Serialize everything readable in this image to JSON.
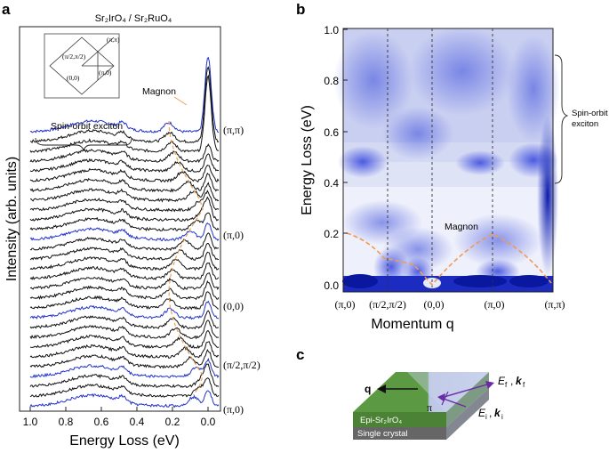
{
  "panel_labels": {
    "a": "a",
    "b": "b",
    "c": "c"
  },
  "panel_a": {
    "title": "Sr₂IrO₄ / Sr₂RuO₄",
    "ylabel": "Intensity (arb. units)",
    "xlabel": "Energy Loss (eV)",
    "xticks": [
      "1.0",
      "0.8",
      "0.6",
      "0.4",
      "0.2",
      "0.0"
    ],
    "annotation_magnon": "Magnon",
    "annotation_soe": "Spin-orbit exciton",
    "q_labels": [
      "(π,π)",
      "(π,0)",
      "(0,0)",
      "(π/2,π/2)",
      "(π,0)"
    ],
    "inset_labels": [
      "(π,π)",
      "(π/2,π/2)",
      "(π,0)",
      "(0,0)"
    ]
  },
  "panel_b": {
    "ylabel": "Energy Loss (eV)",
    "xlabel": "Momentum q",
    "yticks": [
      "0.0",
      "0.2",
      "0.4",
      "0.6",
      "0.8",
      "1.0"
    ],
    "xticks": [
      "(π,0)",
      "(π/2,π/2)",
      "(0,0)",
      "(π,0)",
      "(π,π)"
    ],
    "annotation_magnon": "Magnon",
    "annotation_soe": "Spin-orbit exciton"
  },
  "panel_c": {
    "q_label": "q",
    "ef_label": "E",
    "ef_sub": "f",
    "kf_label": "k",
    "kf_sub": "f",
    "ei_label": "E",
    "ei_sub": "i",
    "ki_label": "k",
    "ki_sub": "i",
    "pi_label": "π",
    "film_label": "Epi-Sr₂IrO₄",
    "substrate_label": "Single crystal"
  },
  "colors": {
    "blue": "#2233cc",
    "orange": "#f0a050",
    "film": "#4f8a3a",
    "substrate": "#6a6a6a"
  },
  "chart_data": [
    {
      "type": "line",
      "xlabel": "Energy Loss (eV)",
      "ylabel": "Intensity (arb. units)",
      "xlim": [
        1.0,
        -0.08
      ],
      "curves": 29,
      "highlighted_blue_curves": [
        "(π,π)",
        "(π,0)",
        "(0,0)",
        "(π/2,π/2)"
      ]
    },
    {
      "type": "heatmap",
      "xlabel": "Momentum q",
      "ylabel": "Energy Loss (eV)",
      "ylim": [
        0.0,
        1.0
      ],
      "categories": [
        "(π,0)",
        "(π/2,π/2)",
        "(0,0)",
        "(π,0)",
        "(π,π)"
      ],
      "magnon_dispersion_eV": [
        0.2,
        0.1,
        0.0,
        0.2,
        0.02
      ]
    }
  ]
}
